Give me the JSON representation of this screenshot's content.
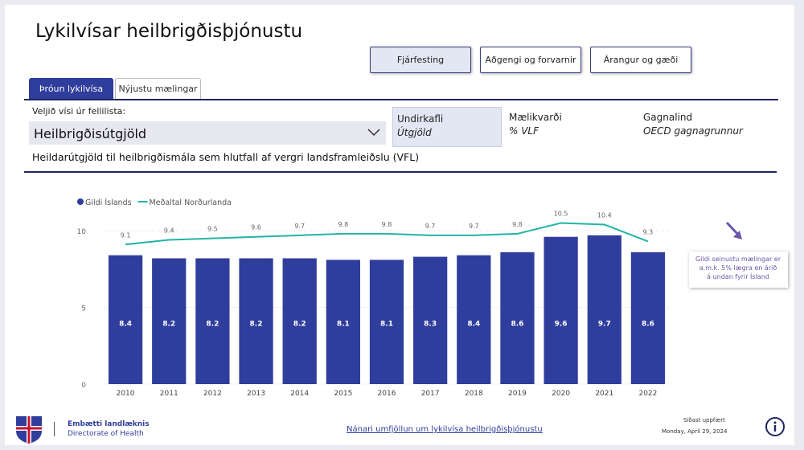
{
  "header": {
    "title": "Lykilvísar heilbrigðisþjónustu"
  },
  "nav_buttons": [
    "Fjárfesting",
    "Aðgengi og forvarnir",
    "Árangur og gæði"
  ],
  "tabs": [
    "Þróun lykilvísa",
    "Nýjustu mælingar"
  ],
  "filters": {
    "dropdown_label": "Veljið vísi úr fellilista:",
    "dropdown_value": "Heilbrigðisútgjöld",
    "subsection": {
      "label": "Undirkafli",
      "value": "Útgjöld"
    },
    "measure": {
      "label": "Mælikvarði",
      "value": "% VLF"
    },
    "source": {
      "label": "Gagnalind",
      "value": "OECD gagnagrunnur"
    }
  },
  "indicator_description": "Heildarútgjöld til heilbrigðismála sem hlutfall af vergri landsframleiðslu (VFL)",
  "chart_data": {
    "type": "bar",
    "categories": [
      "2010",
      "2011",
      "2012",
      "2013",
      "2014",
      "2015",
      "2016",
      "2017",
      "2018",
      "2019",
      "2020",
      "2021",
      "2022"
    ],
    "series": [
      {
        "name": "Gildi Íslands",
        "type": "bar",
        "color": "#2f3d9c",
        "values": [
          8.4,
          8.2,
          8.2,
          8.2,
          8.2,
          8.1,
          8.1,
          8.3,
          8.4,
          8.6,
          9.6,
          9.7,
          8.6
        ]
      },
      {
        "name": "Meðaltal Norðurlanda",
        "type": "line",
        "color": "#22b3a6",
        "values": [
          9.1,
          9.4,
          9.5,
          9.6,
          9.7,
          9.8,
          9.8,
          9.7,
          9.7,
          9.8,
          10.5,
          10.4,
          9.3
        ]
      }
    ],
    "ylim": [
      0,
      11
    ],
    "yticks": [
      0,
      5,
      10
    ],
    "grid": true,
    "annotation": [
      "Gildi seinustu mælingar er",
      "a.m.k. 5% lægra en árið",
      "á undan fyrir Ísland"
    ]
  },
  "footer": {
    "org": "Embætti landlæknis",
    "org_en": "Directorate of Health",
    "link": "Nánari umfjöllun um lykilvísa heilbrigðisþjónustu",
    "updated_label": "Síðast uppfært",
    "updated_date": "Monday, April 29, 2024"
  }
}
